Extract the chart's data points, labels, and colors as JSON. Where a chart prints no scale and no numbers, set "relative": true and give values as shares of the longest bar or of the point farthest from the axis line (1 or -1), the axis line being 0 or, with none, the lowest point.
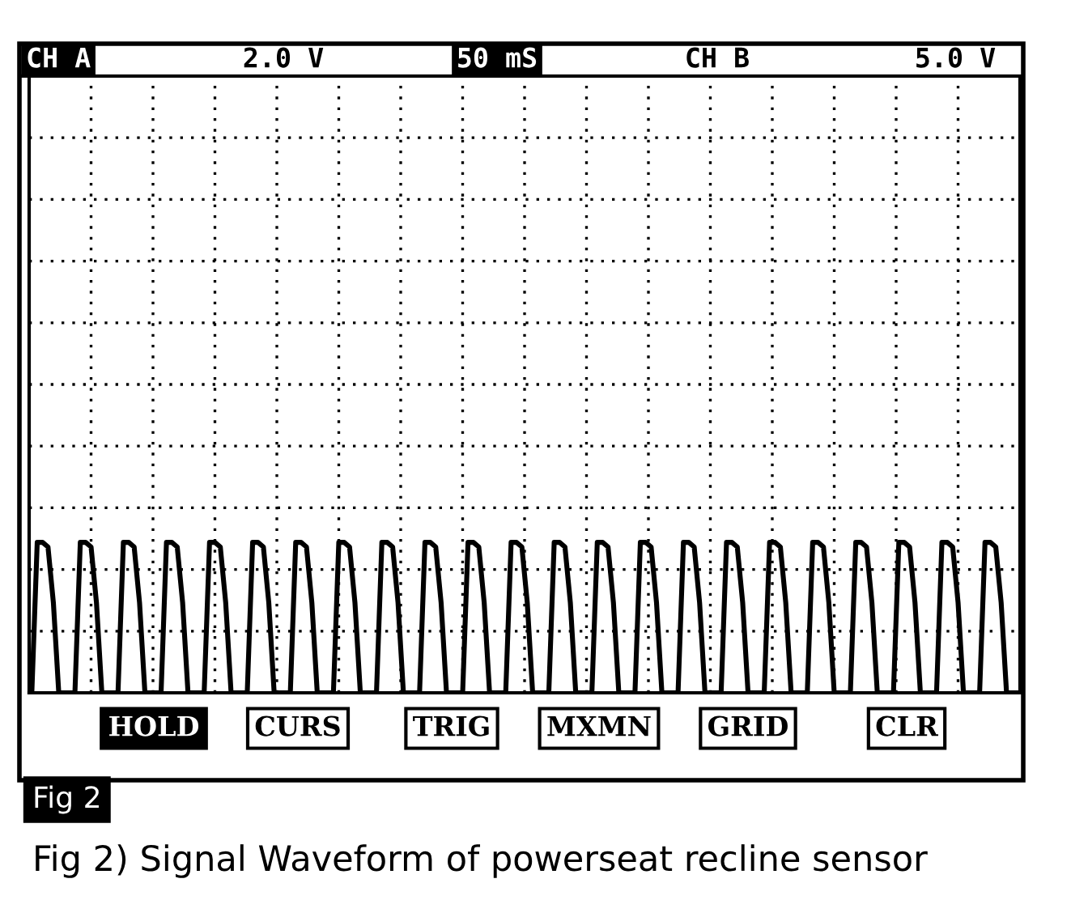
{
  "chart_data": {
    "type": "line",
    "relative": true,
    "grid": true,
    "legend": false,
    "marker": "none",
    "line_style": "solid",
    "categories": [
      null,
      null,
      null,
      null,
      null,
      null,
      null,
      null,
      null,
      null,
      null,
      null,
      null,
      null,
      null,
      null,
      null,
      null,
      null,
      null,
      null,
      null,
      null,
      null,
      null,
      null,
      null,
      null,
      null,
      null,
      null,
      null,
      null,
      null,
      null,
      null,
      null,
      null,
      null,
      null,
      null,
      null,
      null,
      null,
      null,
      null,
      null,
      null,
      null,
      null,
      null,
      null,
      null,
      null,
      null,
      null,
      null,
      null,
      null,
      null,
      null,
      null,
      null,
      null,
      null,
      null,
      null,
      null,
      null,
      null,
      null,
      null,
      null,
      null,
      null,
      null,
      null,
      null,
      null,
      null,
      null,
      null,
      null,
      null,
      null,
      null,
      null,
      null,
      null,
      null,
      null,
      null,
      null,
      null,
      null,
      null,
      null,
      null,
      null,
      null,
      null,
      null,
      null,
      null,
      null,
      null,
      null,
      null,
      null,
      null,
      null,
      null,
      null,
      null,
      null,
      null,
      null,
      null,
      null,
      null,
      null,
      null,
      null,
      null,
      null,
      null,
      null,
      null,
      null,
      null,
      null,
      null,
      null,
      null,
      null,
      null,
      null,
      null,
      null,
      null,
      null,
      null,
      null,
      null,
      null,
      null,
      null,
      null,
      null,
      null,
      null,
      null,
      null,
      null,
      null,
      null,
      null,
      null,
      null,
      null,
      null,
      null,
      null,
      null,
      null,
      null,
      null,
      null,
      null,
      null,
      null,
      null,
      null,
      null,
      null,
      null,
      null,
      null,
      null,
      null,
      null,
      null,
      null,
      null
    ],
    "series": [
      {
        "color": "#000000",
        "values": [
          0,
          1,
          1,
          0.97,
          0.6,
          0,
          0,
          0,
          0,
          1,
          1,
          0.97,
          0.6,
          0,
          0,
          0,
          0,
          1,
          1,
          0.97,
          0.6,
          0,
          0,
          0,
          0,
          1,
          1,
          0.97,
          0.6,
          0,
          0,
          0,
          0,
          1,
          1,
          0.97,
          0.6,
          0,
          0,
          0,
          0,
          1,
          1,
          0.97,
          0.6,
          0,
          0,
          0,
          0,
          1,
          1,
          0.97,
          0.6,
          0,
          0,
          0,
          0,
          1,
          1,
          0.97,
          0.6,
          0,
          0,
          0,
          0,
          1,
          1,
          0.97,
          0.6,
          0,
          0,
          0,
          0,
          1,
          1,
          0.97,
          0.6,
          0,
          0,
          0,
          0,
          1,
          1,
          0.97,
          0.6,
          0,
          0,
          0,
          0,
          1,
          1,
          0.97,
          0.6,
          0,
          0,
          0,
          0,
          1,
          1,
          0.97,
          0.6,
          0,
          0,
          0,
          0,
          1,
          1,
          0.97,
          0.6,
          0,
          0,
          0,
          0,
          1,
          1,
          0.97,
          0.6,
          0,
          0,
          0,
          0,
          1,
          1,
          0.97,
          0.6,
          0,
          0,
          0,
          0,
          1,
          1,
          0.97,
          0.6,
          0,
          0,
          0,
          0,
          1,
          1,
          0.97,
          0.6,
          0,
          0,
          0,
          0,
          1,
          1,
          0.97,
          0.6,
          0,
          0,
          0,
          0,
          1,
          1,
          0.97,
          0.6,
          0,
          0,
          0,
          0,
          1,
          1,
          0.97,
          0.6,
          0,
          0,
          0,
          0,
          1,
          1,
          0.97,
          0.6,
          0,
          0,
          0,
          0,
          1,
          1,
          0.97,
          0.6,
          0,
          0,
          0
        ]
      }
    ],
    "annotations": [
      "CH A",
      "2.0 V",
      "50 mS",
      "CH B",
      "5.0 V",
      "HOLD",
      "CURS",
      "TRIG",
      "MXMN",
      "GRID",
      "CLR",
      "Fig 2",
      "Fig 2) Signal Waveform of powerseat recline sensor"
    ]
  }
}
